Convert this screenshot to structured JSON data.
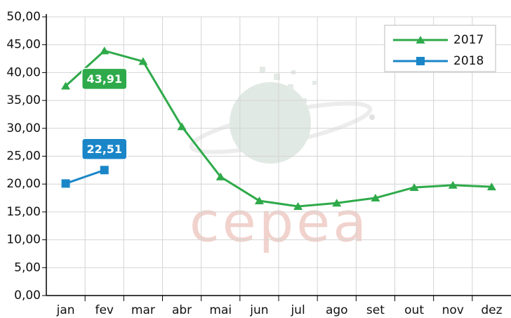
{
  "chart_data": {
    "type": "line",
    "watermark": "cepea",
    "categories": [
      "jan",
      "fev",
      "mar",
      "abr",
      "mai",
      "jun",
      "jul",
      "ago",
      "set",
      "out",
      "nov",
      "dez"
    ],
    "series": [
      {
        "name": "2017",
        "color": "#2eaa4a",
        "marker": "triangle",
        "values": [
          37.6,
          43.91,
          42.0,
          30.3,
          21.3,
          17.0,
          16.0,
          16.6,
          17.5,
          19.4,
          19.8,
          19.5
        ],
        "value_labels": [
          null,
          "43,91",
          null,
          null,
          null,
          null,
          null,
          null,
          null,
          null,
          null,
          null
        ]
      },
      {
        "name": "2018",
        "color": "#1a86c8",
        "marker": "square",
        "values": [
          20.1,
          22.51,
          null,
          null,
          null,
          null,
          null,
          null,
          null,
          null,
          null,
          null
        ],
        "value_labels": [
          null,
          "22,51",
          null,
          null,
          null,
          null,
          null,
          null,
          null,
          null,
          null,
          null
        ]
      }
    ],
    "ylim": [
      0,
      50
    ],
    "yticks": [
      {
        "value": 0,
        "label": "0,00"
      },
      {
        "value": 5,
        "label": "5,00"
      },
      {
        "value": 10,
        "label": "10,00"
      },
      {
        "value": 15,
        "label": "15,00"
      },
      {
        "value": 20,
        "label": "20,00"
      },
      {
        "value": 25,
        "label": "25,00"
      },
      {
        "value": 30,
        "label": "30,00"
      },
      {
        "value": 35,
        "label": "35,00"
      },
      {
        "value": 40,
        "label": "40,00"
      },
      {
        "value": 45,
        "label": "45,00"
      },
      {
        "value": 50,
        "label": "50,00"
      }
    ],
    "grid": true,
    "legend": "top-right"
  }
}
